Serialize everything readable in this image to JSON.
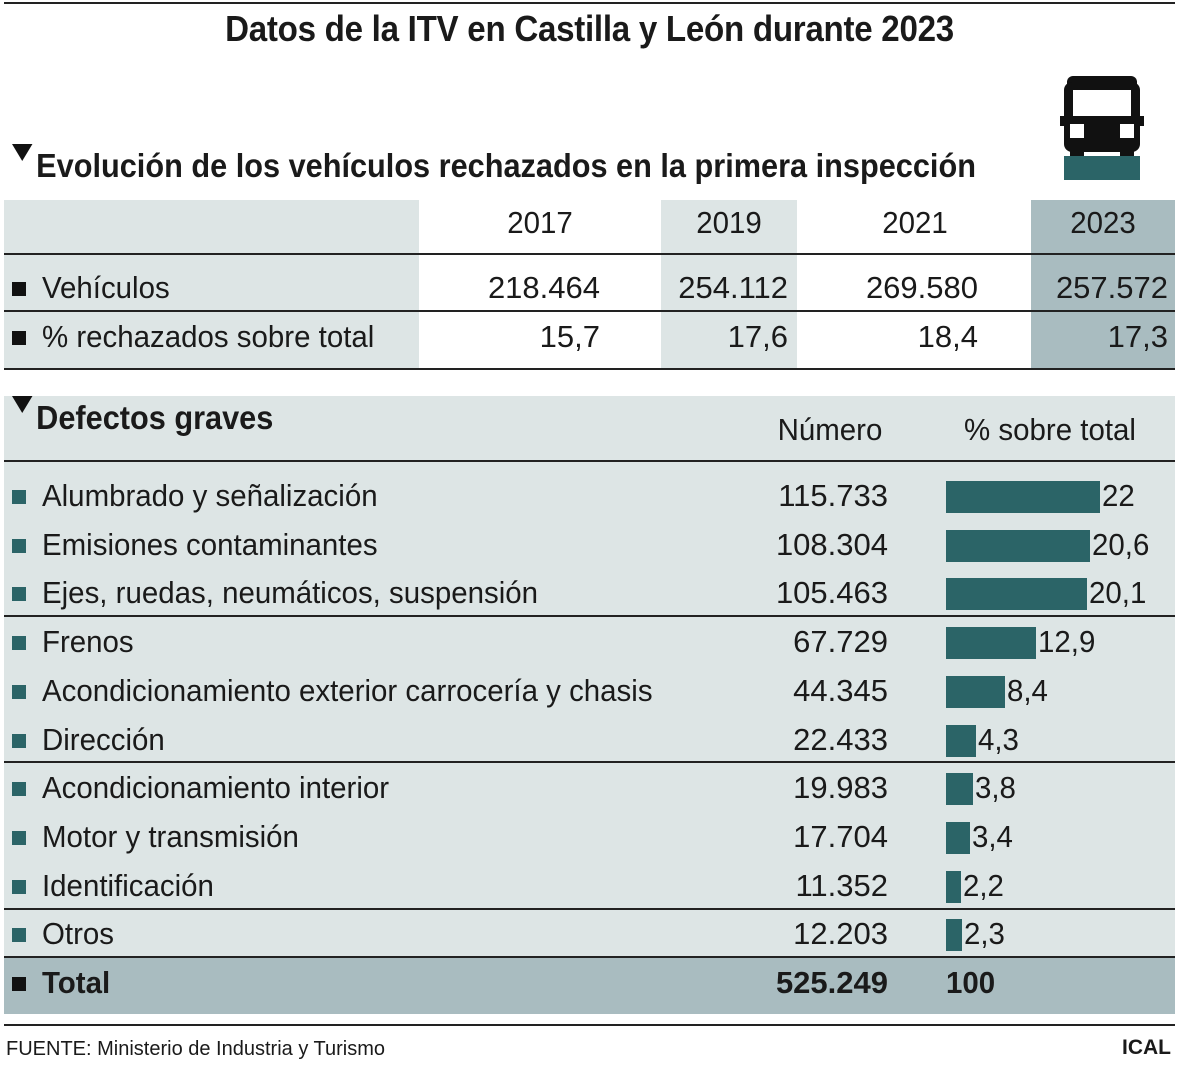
{
  "title": "Datos de la ITV en Castilla y León durante 2023",
  "icons": {
    "header": "car-front-icon",
    "bullet": "square-bullet-icon",
    "section": "triangle-down-icon"
  },
  "colors": {
    "teal": "#2b6467",
    "light_bg": "#dde5e5",
    "highlight": "#a9bcc0"
  },
  "evolucion": {
    "heading": "Evolución de los vehículos rechazados en la primera inspección",
    "years": [
      "2017",
      "2019",
      "2021",
      "2023"
    ],
    "rows": [
      {
        "label": "Vehículos",
        "values": [
          "218.464",
          "254.112",
          "269.580",
          "257.572"
        ]
      },
      {
        "label": "% rechazados sobre total",
        "values": [
          "15,7",
          "17,6",
          "18,4",
          "17,3"
        ]
      }
    ]
  },
  "defectos": {
    "heading": "Defectos graves",
    "col_numero": "Número",
    "col_pct": "% sobre total",
    "rows": [
      {
        "label": "Alumbrado y señalización",
        "numero": "115.733",
        "pct": "22"
      },
      {
        "label": "Emisiones contaminantes",
        "numero": "108.304",
        "pct": "20,6"
      },
      {
        "label": "Ejes, ruedas, neumáticos, suspensión",
        "numero": "105.463",
        "pct": "20,1"
      },
      {
        "label": "Frenos",
        "numero": "67.729",
        "pct": "12,9"
      },
      {
        "label": "Acondicionamiento exterior carrocería y chasis",
        "numero": "44.345",
        "pct": "8,4"
      },
      {
        "label": "Dirección",
        "numero": "22.433",
        "pct": "4,3"
      },
      {
        "label": "Acondicionamiento interior",
        "numero": "19.983",
        "pct": "3,8"
      },
      {
        "label": "Motor y transmisión",
        "numero": "17.704",
        "pct": "3,4"
      },
      {
        "label": "Identificación",
        "numero": "11.352",
        "pct": "2,2"
      },
      {
        "label": "Otros",
        "numero": "12.203",
        "pct": "2,3"
      }
    ],
    "total": {
      "label": "Total",
      "numero": "525.249",
      "pct": "100"
    }
  },
  "chart_data": {
    "type": "bar",
    "title": "Defectos graves",
    "categories": [
      "Alumbrado y señalización",
      "Emisiones contaminantes",
      "Ejes, ruedas, neumáticos, suspensión",
      "Frenos",
      "Acondicionamiento exterior carrocería y chasis",
      "Dirección",
      "Acondicionamiento interior",
      "Motor y transmisión",
      "Identificación",
      "Otros"
    ],
    "values": [
      22,
      20.6,
      20.1,
      12.9,
      8.4,
      4.3,
      3.8,
      3.4,
      2.2,
      2.3
    ],
    "ylabel": "% sobre total",
    "orientation": "horizontal"
  },
  "footer": {
    "source": "FUENTE: Ministerio de Industria y Turismo",
    "credit": "ICAL"
  }
}
